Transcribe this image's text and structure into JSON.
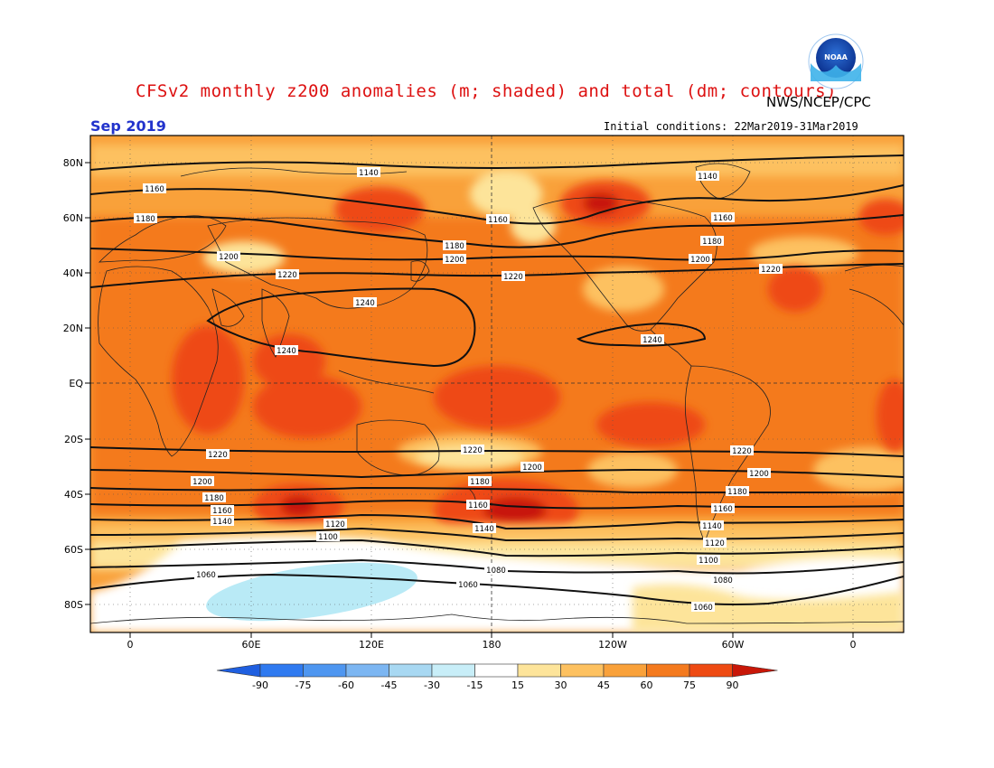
{
  "header": {
    "title": "CFSv2 monthly z200 anomalies (m; shaded) and total (dm; contours)",
    "agency": "NWS/NCEP/CPC",
    "month": "Sep 2019",
    "initial_conditions": "Initial conditions: 22Mar2019-31Mar2019",
    "logo_text": "NOAA"
  },
  "axes": {
    "lat_labels": [
      "80N",
      "60N",
      "40N",
      "20N",
      "EQ",
      "20S",
      "40S",
      "60S",
      "80S"
    ],
    "lon_labels": [
      "0",
      "60E",
      "120E",
      "180",
      "120W",
      "60W",
      "0"
    ]
  },
  "colorbar": {
    "ticks": [
      "-90",
      "-75",
      "-60",
      "-45",
      "-30",
      "-15",
      "15",
      "30",
      "45",
      "60",
      "75",
      "90"
    ],
    "colors": [
      "#1f5fe0",
      "#2f7af0",
      "#4e96f0",
      "#7cb6f2",
      "#a8d8f2",
      "#c8eef8",
      "#ffffff",
      "#fde49a",
      "#fdc160",
      "#f9a13a",
      "#f47a1e",
      "#ee4a12",
      "#c81708"
    ]
  },
  "contour_labels": [
    "1140",
    "1160",
    "1180",
    "1200",
    "1220",
    "1240",
    "1240",
    "1220",
    "1200",
    "1180",
    "1160",
    "1140",
    "1120",
    "1100",
    "1080",
    "1060"
  ],
  "map_data": {
    "contours": [
      {
        "level": "1140",
        "label": "1140",
        "hemisphere": "north"
      },
      {
        "level": "1160",
        "label": "1160",
        "hemisphere": "north"
      },
      {
        "level": "1180",
        "label": "1180",
        "hemisphere": "north"
      },
      {
        "level": "1200",
        "label": "1200",
        "hemisphere": "north"
      },
      {
        "level": "1220",
        "label": "1220",
        "hemisphere": "north"
      },
      {
        "level": "1240",
        "label": "1240",
        "hemisphere": "tropics"
      },
      {
        "level": "1220",
        "label": "1220",
        "hemisphere": "south"
      },
      {
        "level": "1200",
        "label": "1200",
        "hemisphere": "south"
      },
      {
        "level": "1180",
        "label": "1180",
        "hemisphere": "south"
      },
      {
        "level": "1160",
        "label": "1160",
        "hemisphere": "south"
      },
      {
        "level": "1140",
        "label": "1140",
        "hemisphere": "south"
      },
      {
        "level": "1120",
        "label": "1120",
        "hemisphere": "south"
      },
      {
        "level": "1100",
        "label": "1100",
        "hemisphere": "south"
      },
      {
        "level": "1080",
        "label": "1080",
        "hemisphere": "south"
      },
      {
        "level": "1060",
        "label": "1060",
        "hemisphere": "south"
      }
    ]
  }
}
